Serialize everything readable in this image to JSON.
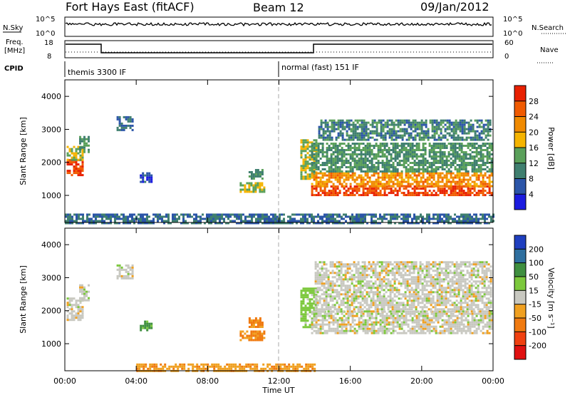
{
  "header": {
    "station": "Fort Hays East (fitACF)",
    "beam": "Beam 12",
    "date": "09/Jan/2012"
  },
  "top_panels": {
    "nsky_label": "N.Sky",
    "nsearch_label": "N.Search",
    "freq_label_line1": "Freq.",
    "freq_label_line2": "[MHz]",
    "nave_label": "Nave",
    "cpid_label": "CPID",
    "noise_ticks_left": [
      "10^5",
      "10^0"
    ],
    "noise_ticks_right": [
      "10^5",
      "10^0"
    ],
    "freq_ticks": [
      "18",
      "8"
    ],
    "nave_ticks": [
      "60",
      "0"
    ],
    "cpid_segments": [
      {
        "label": "themis 3300 IF",
        "start_hour": 0
      },
      {
        "label": "normal (fast) 151 IF",
        "start_hour": 12
      }
    ]
  },
  "chart_data": [
    {
      "type": "heatmap",
      "name": "power",
      "ylabel": "Slant Range [km]",
      "xlabel": "Time UT",
      "x_ticks": [
        "00:00",
        "04:00",
        "08:00",
        "12:00",
        "16:00",
        "20:00",
        "00:00"
      ],
      "x_range_hours": [
        0,
        24
      ],
      "y_ticks": [
        1000,
        2000,
        3000,
        4000
      ],
      "ylim": [
        180,
        4500
      ],
      "colorbar_label": "Power [dB]",
      "colorbar_ticks": [
        4,
        8,
        12,
        16,
        20,
        24,
        28
      ],
      "colorbar_range": [
        0,
        32
      ],
      "colors": [
        "#1b1bdf",
        "#2b55a8",
        "#3f7f6f",
        "#5aa05a",
        "#f5b400",
        "#f08a00",
        "#f05a00",
        "#e82000"
      ],
      "regions": [
        {
          "hours": [
            0.1,
            1.0
          ],
          "range_km": [
            1600,
            2100
          ],
          "level": 28
        },
        {
          "hours": [
            0.1,
            1.0
          ],
          "range_km": [
            2100,
            2500
          ],
          "level": 16
        },
        {
          "hours": [
            0.8,
            1.3
          ],
          "range_km": [
            2300,
            2800
          ],
          "level": 12
        },
        {
          "hours": [
            2.9,
            3.8
          ],
          "range_km": [
            3000,
            3400
          ],
          "level": 8
        },
        {
          "hours": [
            4.2,
            4.8
          ],
          "range_km": [
            1400,
            1700
          ],
          "level": 6
        },
        {
          "hours": [
            9.8,
            11.2
          ],
          "range_km": [
            1100,
            1400
          ],
          "level": 16
        },
        {
          "hours": [
            10.3,
            11.1
          ],
          "range_km": [
            1500,
            1800
          ],
          "level": 12
        },
        {
          "hours": [
            13.2,
            14.1
          ],
          "range_km": [
            1500,
            2700
          ],
          "level": 16
        },
        {
          "hours": [
            13.8,
            23.9
          ],
          "range_km": [
            1000,
            1300
          ],
          "level": 28
        },
        {
          "hours": [
            13.8,
            23.9
          ],
          "range_km": [
            1300,
            1700
          ],
          "level": 22
        },
        {
          "hours": [
            13.8,
            23.9
          ],
          "range_km": [
            1700,
            2600
          ],
          "level": 12
        },
        {
          "hours": [
            14.2,
            23.9
          ],
          "range_km": [
            2700,
            3300
          ],
          "level": 10
        },
        {
          "hours": [
            0.0,
            24.0
          ],
          "range_km": [
            180,
            450
          ],
          "level": 8
        }
      ]
    },
    {
      "type": "heatmap",
      "name": "velocity",
      "ylabel": "Slant Range [km]",
      "xlabel": "Time UT",
      "x_ticks": [
        "00:00",
        "04:00",
        "08:00",
        "12:00",
        "16:00",
        "20:00",
        "00:00"
      ],
      "x_range_hours": [
        0,
        24
      ],
      "y_ticks": [
        1000,
        2000,
        3000,
        4000
      ],
      "ylim": [
        180,
        4500
      ],
      "colorbar_label": "Velocity [m s⁻¹]",
      "colorbar_ticks": [
        200,
        100,
        50,
        15,
        -15,
        -50,
        -100,
        -200
      ],
      "colors": [
        "#1f3fbf",
        "#2f6f9f",
        "#3f8f3f",
        "#7cc83c",
        "#c8c8c0",
        "#f0a020",
        "#f07a10",
        "#f04010",
        "#e01010"
      ],
      "regions": [
        {
          "hours": [
            0.1,
            1.0
          ],
          "range_km": [
            1700,
            2400
          ],
          "velocity": 0
        },
        {
          "hours": [
            0.8,
            1.3
          ],
          "range_km": [
            2300,
            2800
          ],
          "velocity": 0
        },
        {
          "hours": [
            2.9,
            3.8
          ],
          "range_km": [
            3000,
            3400
          ],
          "velocity": 0
        },
        {
          "hours": [
            4.2,
            4.8
          ],
          "range_km": [
            1400,
            1700
          ],
          "velocity": 60
        },
        {
          "hours": [
            9.8,
            11.2
          ],
          "range_km": [
            1100,
            1400
          ],
          "velocity": -60
        },
        {
          "hours": [
            10.3,
            11.1
          ],
          "range_km": [
            1500,
            1800
          ],
          "velocity": -60
        },
        {
          "hours": [
            13.2,
            14.1
          ],
          "range_km": [
            1500,
            2700
          ],
          "velocity": 30
        },
        {
          "hours": [
            13.8,
            23.9
          ],
          "range_km": [
            1300,
            2000
          ],
          "velocity": 0
        },
        {
          "hours": [
            14.0,
            23.9
          ],
          "range_km": [
            2000,
            3500
          ],
          "velocity": 0
        },
        {
          "hours": [
            4.0,
            14.0
          ],
          "range_km": [
            180,
            400
          ],
          "velocity": -40
        }
      ]
    }
  ]
}
